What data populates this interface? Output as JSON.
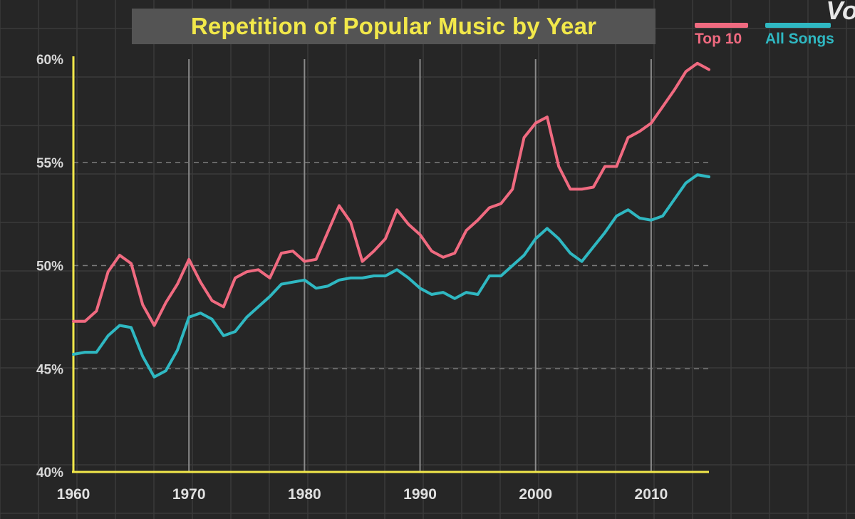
{
  "header": {
    "title": "Repetition of Popular Music by Year",
    "brand": "Vo"
  },
  "legend": [
    {
      "label": "Top 10",
      "color": "#f06a80"
    },
    {
      "label": "All Songs",
      "color": "#2fb8c2"
    }
  ],
  "chart_data": {
    "type": "line",
    "title": "Repetition of Popular Music by Year",
    "xlabel": "",
    "ylabel": "",
    "xlim": [
      1960,
      2015
    ],
    "ylim": [
      40,
      60
    ],
    "x_ticks": [
      1960,
      1970,
      1980,
      1990,
      2000,
      2010
    ],
    "y_ticks": [
      40,
      45,
      50,
      55,
      60
    ],
    "y_tick_labels": [
      "40%",
      "45%",
      "50%",
      "55%",
      "60%"
    ],
    "legend_position": "top-right",
    "grid": true,
    "x": [
      1960,
      1961,
      1962,
      1963,
      1964,
      1965,
      1966,
      1967,
      1968,
      1969,
      1970,
      1971,
      1972,
      1973,
      1974,
      1975,
      1976,
      1977,
      1978,
      1979,
      1980,
      1981,
      1982,
      1983,
      1984,
      1985,
      1986,
      1987,
      1988,
      1989,
      1990,
      1991,
      1992,
      1993,
      1994,
      1995,
      1996,
      1997,
      1998,
      1999,
      2000,
      2001,
      2002,
      2003,
      2004,
      2005,
      2006,
      2007,
      2008,
      2009,
      2010,
      2011,
      2012,
      2013,
      2014,
      2015
    ],
    "series": [
      {
        "name": "Top 10",
        "color": "#f06a80",
        "values": [
          47.3,
          47.3,
          47.8,
          49.7,
          50.5,
          50.1,
          48.1,
          47.1,
          48.2,
          49.1,
          50.3,
          49.2,
          48.3,
          48.0,
          49.4,
          49.7,
          49.8,
          49.4,
          50.6,
          50.7,
          50.2,
          50.3,
          51.6,
          52.9,
          52.1,
          50.2,
          50.7,
          51.3,
          52.7,
          52.0,
          51.5,
          50.7,
          50.4,
          50.6,
          51.7,
          52.2,
          52.8,
          53.0,
          53.7,
          56.2,
          56.9,
          57.2,
          54.8,
          53.7,
          53.7,
          53.8,
          54.8,
          54.8,
          56.2,
          56.5,
          56.9,
          57.7,
          58.5,
          59.4,
          59.8,
          59.5
        ]
      },
      {
        "name": "All Songs",
        "color": "#2fb8c2",
        "values": [
          45.7,
          45.8,
          45.8,
          46.6,
          47.1,
          47.0,
          45.6,
          44.6,
          44.9,
          45.9,
          47.5,
          47.7,
          47.4,
          46.6,
          46.8,
          47.5,
          48.0,
          48.5,
          49.1,
          49.2,
          49.3,
          48.9,
          49.0,
          49.3,
          49.4,
          49.4,
          49.5,
          49.5,
          49.8,
          49.4,
          48.9,
          48.6,
          48.7,
          48.4,
          48.7,
          48.6,
          49.5,
          49.5,
          50.0,
          50.5,
          51.3,
          51.8,
          51.3,
          50.6,
          50.2,
          50.9,
          51.6,
          52.4,
          52.7,
          52.3,
          52.2,
          52.4,
          53.2,
          54.0,
          54.4,
          54.3
        ]
      }
    ]
  }
}
